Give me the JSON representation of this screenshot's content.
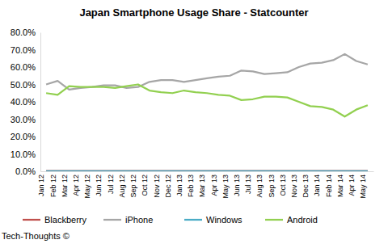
{
  "chart_data": {
    "type": "line",
    "title": "Japan Smartphone Usage Share - Statcounter",
    "categories": [
      "Jan 12",
      "Feb 12",
      "Mar 12",
      "Apr 12",
      "May 12",
      "Jun 12",
      "Jul 12",
      "Aug 12",
      "Sep 12",
      "Oct 12",
      "Nov 12",
      "Dec 12",
      "Jan 13",
      "Feb 13",
      "Mar 13",
      "Apr 13",
      "May 13",
      "Jun 13",
      "Jul 13",
      "Aug 13",
      "Sep 13",
      "Oct 13",
      "Nov 13",
      "Dec 13",
      "Jan 14",
      "Feb 14",
      "Mar 14",
      "Apr 14",
      "May 14"
    ],
    "series": [
      {
        "name": "Blackberry",
        "color": "#c0504d",
        "values": [
          0.2,
          0.2,
          0.2,
          0.2,
          0.2,
          0.2,
          0.2,
          0.2,
          0.2,
          0.2,
          0.2,
          0.2,
          0.2,
          0.2,
          0.2,
          0.2,
          0.2,
          0.2,
          0.2,
          0.2,
          0.2,
          0.2,
          0.2,
          0.2,
          0.2,
          0.2,
          0.2,
          0.2,
          0.2
        ]
      },
      {
        "name": "iPhone",
        "color": "#a6a6a6",
        "values": [
          50,
          52,
          47,
          48,
          48.5,
          49.5,
          49.5,
          48,
          48.5,
          51.5,
          52.5,
          52.5,
          51.5,
          52.5,
          53.5,
          54.5,
          55,
          58,
          57.5,
          56,
          56.5,
          57,
          60,
          62,
          62.5,
          64,
          67.5,
          63.5,
          61.5
        ]
      },
      {
        "name": "Windows",
        "color": "#4bacc6",
        "values": [
          0.1,
          0.1,
          0.1,
          0.1,
          0.1,
          0.1,
          0.1,
          0.1,
          0.1,
          0.1,
          0.1,
          0.1,
          0.1,
          0.1,
          0.1,
          0.1,
          0.1,
          0.1,
          0.1,
          0.1,
          0.1,
          0.1,
          0.1,
          0.1,
          0.1,
          0.1,
          0.1,
          0.1,
          0.1
        ]
      },
      {
        "name": "Android",
        "color": "#92d050",
        "values": [
          45,
          44,
          49,
          48.5,
          48.5,
          48.5,
          48,
          49,
          50,
          46.5,
          45.5,
          45,
          46.5,
          45.5,
          45,
          44,
          43.5,
          41,
          41.5,
          43,
          43,
          42.5,
          40,
          37.5,
          37,
          35.5,
          31.5,
          35.5,
          38
        ]
      }
    ],
    "ylim": [
      0,
      80
    ],
    "yticks": [
      {
        "value": 0,
        "label": "0.0%"
      },
      {
        "value": 10,
        "label": "10.0%"
      },
      {
        "value": 20,
        "label": "20.0%"
      },
      {
        "value": 30,
        "label": "30.0%"
      },
      {
        "value": 40,
        "label": "40.0%"
      },
      {
        "value": 50,
        "label": "50.0%"
      },
      {
        "value": 60,
        "label": "60.0%"
      },
      {
        "value": 70,
        "label": "70.0%"
      },
      {
        "value": 80,
        "label": "80.0%"
      }
    ],
    "grid": false,
    "legend": "bottom",
    "annotations": [
      "Tech-Thoughts ©"
    ]
  }
}
